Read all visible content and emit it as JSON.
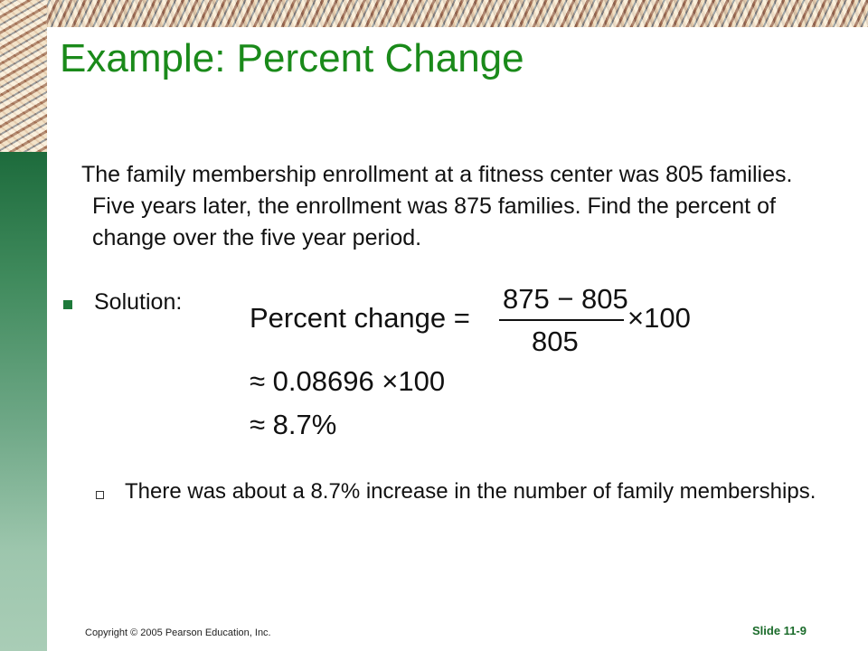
{
  "slide": {
    "title": "Example: Percent Change",
    "problem": "The family membership enrollment at a fitness center was 805 families. Five years later, the enrollment was 875 families. Find the percent of change over the five year period.",
    "solution_label": "Solution:",
    "equation": {
      "lhs": "Percent change =",
      "numerator": "875 − 805",
      "denominator": "805",
      "times": "×100",
      "step2": "≈ 0.08696 ×100",
      "step3": "≈ 8.7%"
    },
    "conclusion": "There was about a 8.7% increase in the number of family memberships."
  },
  "footer": {
    "copyright": "Copyright © 2005 Pearson Education, Inc.",
    "slide_number": "Slide 11-9"
  },
  "colors": {
    "title": "#1a8a1a",
    "bullet": "#1e7a3a",
    "sidebar_top": "#1d6b3c",
    "sidebar_bottom": "#a9cdb6"
  }
}
